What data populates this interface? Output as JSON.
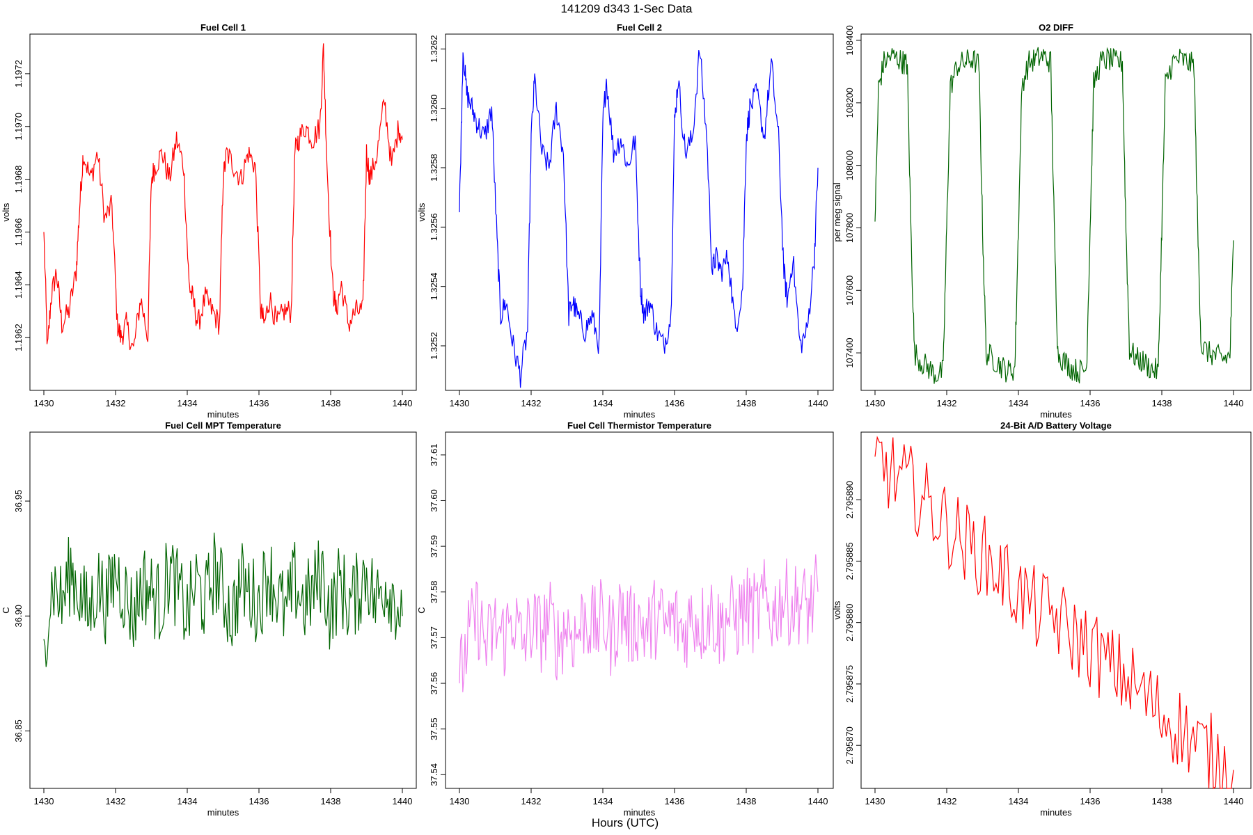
{
  "header": {
    "title": "141209   d343   1-Sec Data"
  },
  "footer": {
    "xlabel": "Hours (UTC)"
  },
  "chart_data": [
    {
      "type": "line",
      "title": "Fuel Cell 1",
      "xlabel": "minutes",
      "ylabel": "volts",
      "color": "#ff0000",
      "xlim": [
        1430,
        1440
      ],
      "ylim": [
        1.196,
        1.19735
      ],
      "x_ticks": [
        "1430",
        "1432",
        "1434",
        "1436",
        "1438",
        "1440"
      ],
      "y_ticks": [
        "1.1962",
        "1.1964",
        "1.1966",
        "1.1968",
        "1.1970",
        "1.1972"
      ],
      "series": [
        {
          "x": [
            1430.0,
            1430.1,
            1430.2,
            1430.35,
            1430.5,
            1430.7,
            1430.9,
            1431.0,
            1431.1,
            1431.3,
            1431.5,
            1431.7,
            1431.9,
            1432.05,
            1432.15,
            1432.3,
            1432.5,
            1432.7,
            1432.9,
            1433.0,
            1433.1,
            1433.3,
            1433.5,
            1433.7,
            1433.9,
            1434.05,
            1434.15,
            1434.3,
            1434.5,
            1434.7,
            1434.9,
            1435.0,
            1435.1,
            1435.3,
            1435.5,
            1435.7,
            1435.9,
            1436.05,
            1436.15,
            1436.3,
            1436.5,
            1436.7,
            1436.9,
            1437.0,
            1437.1,
            1437.3,
            1437.5,
            1437.7,
            1437.8,
            1437.9,
            1438.05,
            1438.15,
            1438.3,
            1438.5,
            1438.7,
            1438.9,
            1439.0,
            1439.1,
            1439.3,
            1439.5,
            1439.7,
            1439.9,
            1440.0
          ],
          "y": [
            1.1966,
            1.19615,
            1.19635,
            1.19645,
            1.19625,
            1.1963,
            1.19645,
            1.1967,
            1.1969,
            1.1968,
            1.1969,
            1.19665,
            1.1967,
            1.19625,
            1.1962,
            1.19625,
            1.19615,
            1.19635,
            1.1962,
            1.1968,
            1.19685,
            1.1969,
            1.1968,
            1.19695,
            1.19685,
            1.1964,
            1.19635,
            1.19625,
            1.19635,
            1.1963,
            1.19625,
            1.1968,
            1.1969,
            1.19685,
            1.1968,
            1.1969,
            1.19685,
            1.1963,
            1.19625,
            1.19635,
            1.19625,
            1.1963,
            1.1963,
            1.1969,
            1.19695,
            1.197,
            1.19695,
            1.197,
            1.1973,
            1.19685,
            1.1964,
            1.1963,
            1.1964,
            1.19625,
            1.1963,
            1.1963,
            1.1969,
            1.1968,
            1.1969,
            1.1971,
            1.19685,
            1.197,
            1.19695
          ]
        }
      ]
    },
    {
      "type": "line",
      "title": "Fuel Cell 2",
      "xlabel": "minutes",
      "ylabel": "volts",
      "color": "#0000ff",
      "xlim": [
        1430,
        1440
      ],
      "ylim": [
        1.32505,
        1.32625
      ],
      "x_ticks": [
        "1430",
        "1432",
        "1434",
        "1436",
        "1438",
        "1440"
      ],
      "y_ticks": [
        "1.3252",
        "1.3254",
        "1.3256",
        "1.3258",
        "1.3260",
        "1.3262"
      ],
      "series": [
        {
          "x": [
            1430.0,
            1430.1,
            1430.2,
            1430.35,
            1430.5,
            1430.7,
            1430.9,
            1431.05,
            1431.15,
            1431.3,
            1431.5,
            1431.7,
            1431.9,
            1432.0,
            1432.1,
            1432.3,
            1432.5,
            1432.7,
            1432.9,
            1433.05,
            1433.15,
            1433.3,
            1433.5,
            1433.7,
            1433.9,
            1434.0,
            1434.1,
            1434.3,
            1434.5,
            1434.7,
            1434.9,
            1435.05,
            1435.15,
            1435.3,
            1435.5,
            1435.7,
            1435.9,
            1436.0,
            1436.1,
            1436.3,
            1436.5,
            1436.7,
            1436.9,
            1437.05,
            1437.15,
            1437.3,
            1437.5,
            1437.7,
            1437.9,
            1438.0,
            1438.1,
            1438.3,
            1438.5,
            1438.7,
            1438.9,
            1439.05,
            1439.15,
            1439.3,
            1439.5,
            1439.7,
            1439.9,
            1440.0
          ],
          "y": [
            1.32565,
            1.3262,
            1.32605,
            1.326,
            1.32595,
            1.3259,
            1.326,
            1.32555,
            1.3253,
            1.32535,
            1.3252,
            1.3251,
            1.32525,
            1.3259,
            1.3261,
            1.32585,
            1.3258,
            1.326,
            1.32585,
            1.3253,
            1.32535,
            1.3253,
            1.32525,
            1.3253,
            1.3252,
            1.32595,
            1.3261,
            1.32585,
            1.3259,
            1.3258,
            1.3259,
            1.3254,
            1.3253,
            1.32535,
            1.32525,
            1.3252,
            1.3253,
            1.32595,
            1.3261,
            1.32585,
            1.3259,
            1.3262,
            1.3259,
            1.32545,
            1.3255,
            1.32545,
            1.3255,
            1.32525,
            1.3254,
            1.3259,
            1.326,
            1.32605,
            1.3259,
            1.32615,
            1.3259,
            1.32545,
            1.32535,
            1.3255,
            1.3252,
            1.32525,
            1.3255,
            1.3258
          ]
        }
      ]
    },
    {
      "type": "line",
      "title": "O2 DIFF",
      "xlabel": "minutes",
      "ylabel": "per meg signal",
      "color": "#006400",
      "xlim": [
        1430,
        1440
      ],
      "ylim": [
        107280,
        108420
      ],
      "x_ticks": [
        "1430",
        "1432",
        "1434",
        "1436",
        "1438",
        "1440"
      ],
      "y_ticks": [
        "107400",
        "107600",
        "107800",
        "108000",
        "108200",
        "108400"
      ],
      "series": [
        {
          "x": [
            1430.0,
            1430.1,
            1430.25,
            1430.45,
            1430.65,
            1430.8,
            1430.9,
            1431.0,
            1431.1,
            1431.3,
            1431.5,
            1431.7,
            1431.9,
            1432.0,
            1432.1,
            1432.3,
            1432.5,
            1432.7,
            1432.9,
            1433.0,
            1433.1,
            1433.3,
            1433.5,
            1433.7,
            1433.9,
            1434.0,
            1434.1,
            1434.3,
            1434.5,
            1434.7,
            1434.9,
            1435.0,
            1435.1,
            1435.3,
            1435.5,
            1435.7,
            1435.9,
            1436.0,
            1436.1,
            1436.3,
            1436.5,
            1436.7,
            1436.9,
            1437.0,
            1437.1,
            1437.3,
            1437.5,
            1437.7,
            1437.9,
            1438.0,
            1438.1,
            1438.3,
            1438.5,
            1438.7,
            1438.9,
            1439.0,
            1439.1,
            1439.3,
            1439.5,
            1439.7,
            1439.9,
            1440.0
          ],
          "y": [
            107820,
            108250,
            108330,
            108350,
            108340,
            108330,
            108320,
            107800,
            107400,
            107370,
            107350,
            107330,
            107340,
            107800,
            108250,
            108320,
            108330,
            108340,
            108320,
            107800,
            107400,
            107380,
            107360,
            107340,
            107350,
            107800,
            108260,
            108330,
            108340,
            108350,
            108330,
            107800,
            107400,
            107370,
            107350,
            107340,
            107350,
            107800,
            108260,
            108330,
            108340,
            108330,
            108330,
            107800,
            107410,
            107380,
            107370,
            107350,
            107340,
            107800,
            108260,
            108330,
            108340,
            108330,
            108320,
            107800,
            107420,
            107400,
            107390,
            107380,
            107390,
            107760
          ]
        }
      ]
    },
    {
      "type": "line",
      "title": "Fuel Cell MPT Temperature",
      "xlabel": "minutes",
      "ylabel": "C",
      "color": "#006400",
      "xlim": [
        1430,
        1440
      ],
      "ylim": [
        36.825,
        36.98
      ],
      "x_ticks": [
        "1430",
        "1432",
        "1434",
        "1436",
        "1438",
        "1440"
      ],
      "y_ticks": [
        "36.85",
        "36.90",
        "36.95"
      ],
      "series": [
        {
          "x": [
            1430.0,
            1430.25,
            1430.5,
            1430.75,
            1431.0,
            1431.25,
            1431.5,
            1431.75,
            1432.0,
            1432.25,
            1432.5,
            1432.75,
            1433.0,
            1433.25,
            1433.5,
            1433.75,
            1434.0,
            1434.25,
            1434.5,
            1434.75,
            1435.0,
            1435.25,
            1435.5,
            1435.75,
            1436.0,
            1436.25,
            1436.5,
            1436.75,
            1437.0,
            1437.25,
            1437.5,
            1437.75,
            1438.0,
            1438.25,
            1438.5,
            1438.75,
            1439.0,
            1439.25,
            1439.5,
            1439.75,
            1440.0
          ],
          "y": [
            36.89,
            36.915,
            36.905,
            36.92,
            36.91,
            36.9,
            36.915,
            36.905,
            36.92,
            36.91,
            36.9,
            36.915,
            36.91,
            36.905,
            36.92,
            36.91,
            36.9,
            36.915,
            36.905,
            36.92,
            36.91,
            36.9,
            36.915,
            36.91,
            36.905,
            36.92,
            36.91,
            36.9,
            36.915,
            36.905,
            36.91,
            36.92,
            36.9,
            36.915,
            36.905,
            36.91,
            36.92,
            36.905,
            36.915,
            36.91,
            36.9
          ]
        }
      ]
    },
    {
      "type": "line",
      "title": "Fuel Cell Thermistor Temperature",
      "xlabel": "minutes",
      "ylabel": "C",
      "color": "#ee82ee",
      "xlim": [
        1430,
        1440
      ],
      "ylim": [
        37.537,
        37.615
      ],
      "x_ticks": [
        "1430",
        "1432",
        "1434",
        "1436",
        "1438",
        "1440"
      ],
      "y_ticks": [
        "37.54",
        "37.55",
        "37.56",
        "37.57",
        "37.58",
        "37.59",
        "37.60",
        "37.61"
      ],
      "series": [
        {
          "x": [
            1430.0,
            1430.25,
            1430.5,
            1430.75,
            1431.0,
            1431.25,
            1431.5,
            1431.75,
            1432.0,
            1432.25,
            1432.5,
            1432.75,
            1433.0,
            1433.25,
            1433.5,
            1433.75,
            1434.0,
            1434.25,
            1434.5,
            1434.75,
            1435.0,
            1435.25,
            1435.5,
            1435.75,
            1436.0,
            1436.25,
            1436.5,
            1436.75,
            1437.0,
            1437.25,
            1437.5,
            1437.75,
            1438.0,
            1438.25,
            1438.5,
            1438.75,
            1439.0,
            1439.25,
            1439.5,
            1439.75,
            1440.0
          ],
          "y": [
            37.56,
            37.57,
            37.575,
            37.568,
            37.572,
            37.57,
            37.575,
            37.568,
            37.573,
            37.571,
            37.574,
            37.569,
            37.573,
            37.57,
            37.575,
            37.572,
            37.574,
            37.57,
            37.576,
            37.572,
            37.574,
            37.571,
            37.575,
            37.572,
            37.574,
            37.571,
            37.575,
            37.573,
            37.576,
            37.572,
            37.575,
            37.574,
            37.577,
            37.575,
            37.578,
            37.575,
            37.579,
            37.577,
            37.578,
            37.576,
            37.58
          ]
        }
      ]
    },
    {
      "type": "line",
      "title": "24-Bit A/D Battery Voltage",
      "xlabel": "minutes",
      "ylabel": "volts",
      "color": "#ff0000",
      "xlim": [
        1430,
        1440
      ],
      "ylim": [
        2.7958665,
        2.7958955
      ],
      "x_ticks": [
        "1430",
        "1432",
        "1434",
        "1436",
        "1438",
        "1440"
      ],
      "y_ticks": [
        "2.795870",
        "2.795875",
        "2.795880",
        "2.795885",
        "2.795890"
      ],
      "series": [
        {
          "x": [
            1430.0,
            1430.5,
            1431.0,
            1431.5,
            1432.0,
            1432.5,
            1433.0,
            1433.5,
            1434.0,
            1434.5,
            1435.0,
            1435.5,
            1436.0,
            1436.5,
            1437.0,
            1437.5,
            1438.0,
            1438.5,
            1439.0,
            1439.5,
            1440.0
          ],
          "y": [
            2.7958935,
            2.795892,
            2.795891,
            2.7958895,
            2.795888,
            2.7958865,
            2.7958855,
            2.795884,
            2.7958825,
            2.795881,
            2.7958805,
            2.795879,
            2.795878,
            2.7958765,
            2.7958755,
            2.795874,
            2.7958725,
            2.7958715,
            2.79587,
            2.795869,
            2.795868
          ]
        }
      ]
    }
  ]
}
